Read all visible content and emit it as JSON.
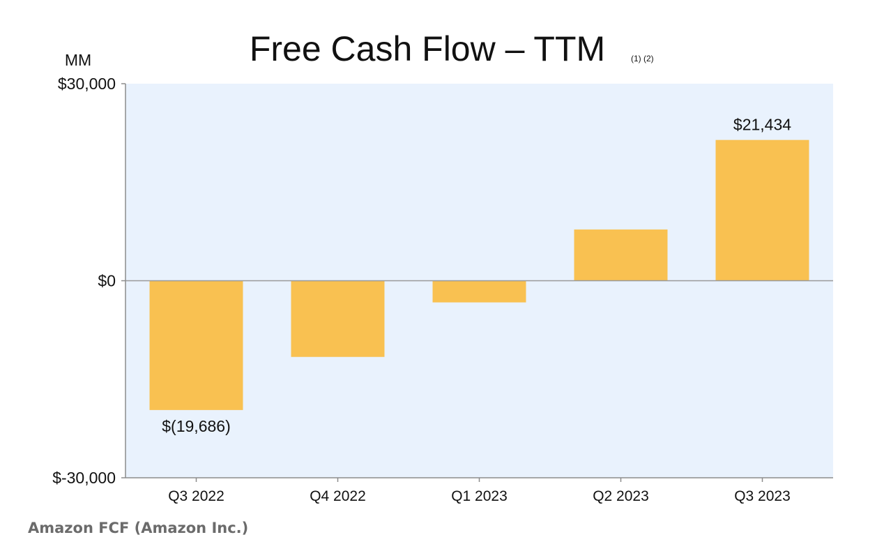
{
  "chart_data": {
    "type": "bar",
    "title": "Free Cash Flow – TTM",
    "title_note": "(1) (2)",
    "ylabel": "MM",
    "categories": [
      "Q3 2022",
      "Q4 2022",
      "Q1 2023",
      "Q2 2023",
      "Q3 2023"
    ],
    "values": [
      -19686,
      -11600,
      -3300,
      7800,
      21434
    ],
    "value_labels": [
      "$(19,686)",
      "",
      "",
      "",
      "$21,434"
    ],
    "ylim": [
      -30000,
      30000
    ],
    "yticks": [
      {
        "value": 30000,
        "label": "$30,000"
      },
      {
        "value": 0,
        "label": "$0"
      },
      {
        "value": -30000,
        "label": "$-30,000"
      }
    ],
    "grid": false,
    "bar_color": "#f9c151",
    "plot_background": "#e9f2fd",
    "zero_line_color": "#9a9a9a"
  },
  "caption": "Amazon FCF (Amazon Inc.)"
}
